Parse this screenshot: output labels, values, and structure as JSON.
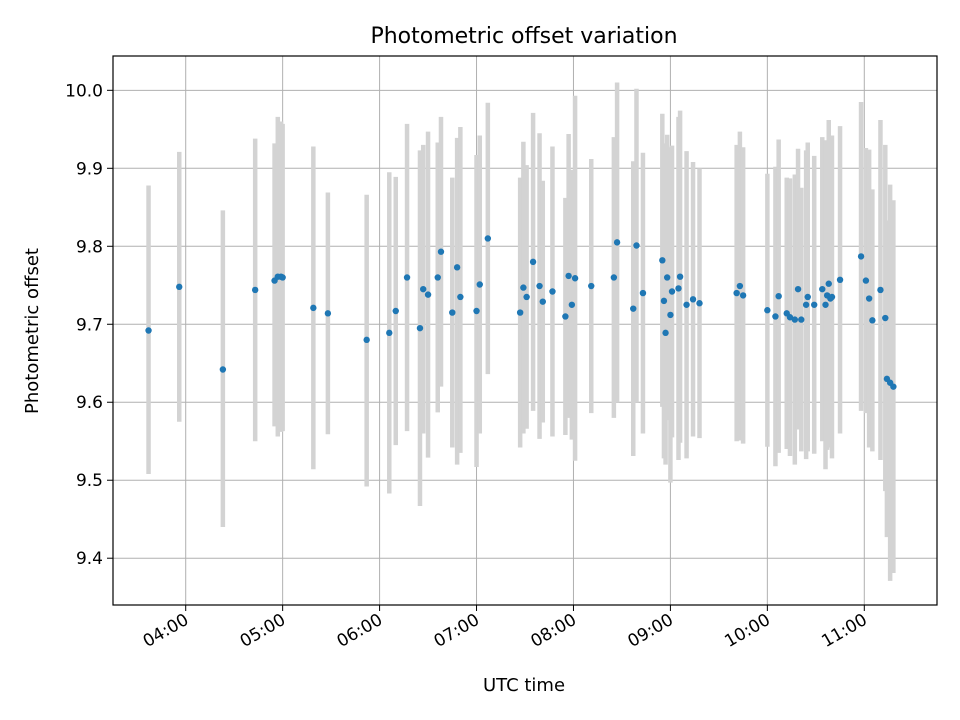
{
  "chart_data": {
    "type": "scatter",
    "title": "Photometric offset variation",
    "xlabel": "UTC time",
    "ylabel": "Photometric offset",
    "xlim": [
      "03:15",
      "11:45"
    ],
    "ylim": [
      9.34,
      10.044
    ],
    "x_ticks": [
      "04:00",
      "05:00",
      "06:00",
      "07:00",
      "08:00",
      "09:00",
      "10:00",
      "11:00"
    ],
    "y_ticks": [
      "9.4",
      "9.5",
      "9.6",
      "9.7",
      "9.8",
      "9.9",
      "10.0"
    ],
    "grid": true,
    "colors": {
      "point": "#1f77b4",
      "errorbar": "#d3d3d3",
      "grid": "#b0b0b0"
    },
    "series": [
      {
        "x": [
          "03:37",
          "03:56",
          "04:23",
          "04:43",
          "04:55",
          "04:57",
          "04:59",
          "05:00",
          "05:19",
          "05:28",
          "05:52",
          "06:06",
          "06:10",
          "06:17",
          "06:25",
          "06:27",
          "06:30",
          "06:36",
          "06:38",
          "06:45",
          "06:48",
          "06:50",
          "07:00",
          "07:02",
          "07:07",
          "07:27",
          "07:29",
          "07:31",
          "07:35",
          "07:39",
          "07:41",
          "07:47",
          "07:55",
          "07:57",
          "07:59",
          "08:01",
          "08:11",
          "08:25",
          "08:27",
          "08:37",
          "08:39",
          "08:43",
          "08:55",
          "08:56",
          "08:57",
          "08:58",
          "09:00",
          "09:01",
          "09:05",
          "09:06",
          "09:10",
          "09:14",
          "09:18",
          "09:41",
          "09:43",
          "09:45",
          "10:00",
          "10:05",
          "10:07",
          "10:12",
          "10:14",
          "10:17",
          "10:19",
          "10:21",
          "10:24",
          "10:25",
          "10:29",
          "10:34",
          "10:36",
          "10:37",
          "10:38",
          "10:39",
          "10:40",
          "10:45",
          "10:58",
          "11:01",
          "11:03",
          "11:05",
          "11:10",
          "11:13",
          "11:14",
          "11:16",
          "11:18"
        ],
        "y": [
          9.692,
          9.748,
          9.642,
          9.744,
          9.756,
          9.761,
          9.761,
          9.76,
          9.721,
          9.714,
          9.68,
          9.689,
          9.717,
          9.76,
          9.695,
          9.745,
          9.738,
          9.76,
          9.793,
          9.715,
          9.773,
          9.735,
          9.717,
          9.751,
          9.81,
          9.715,
          9.747,
          9.735,
          9.78,
          9.749,
          9.729,
          9.742,
          9.71,
          9.762,
          9.725,
          9.759,
          9.749,
          9.76,
          9.805,
          9.72,
          9.801,
          9.74,
          9.782,
          9.73,
          9.689,
          9.76,
          9.712,
          9.742,
          9.746,
          9.761,
          9.725,
          9.732,
          9.727,
          9.74,
          9.749,
          9.737,
          9.718,
          9.71,
          9.736,
          9.714,
          9.709,
          9.706,
          9.745,
          9.706,
          9.725,
          9.735,
          9.725,
          9.745,
          9.725,
          9.737,
          9.752,
          9.733,
          9.735,
          9.757,
          9.787,
          9.756,
          9.733,
          9.705,
          9.744,
          9.708,
          9.63,
          9.625,
          9.62
        ],
        "yerr_low": [
          9.508,
          9.575,
          9.44,
          9.55,
          9.569,
          9.556,
          9.562,
          9.563,
          9.514,
          9.559,
          9.492,
          9.483,
          9.545,
          9.563,
          9.467,
          9.56,
          9.529,
          9.587,
          9.62,
          9.542,
          9.52,
          9.535,
          9.517,
          9.56,
          9.636,
          9.542,
          9.56,
          9.566,
          9.589,
          9.553,
          9.574,
          9.556,
          9.558,
          9.58,
          9.552,
          9.525,
          9.586,
          9.58,
          9.6,
          9.531,
          9.6,
          9.56,
          9.594,
          9.528,
          9.52,
          9.577,
          9.497,
          9.555,
          9.526,
          9.548,
          9.528,
          9.556,
          9.554,
          9.55,
          9.551,
          9.547,
          9.543,
          9.518,
          9.535,
          9.54,
          9.531,
          9.52,
          9.565,
          9.537,
          9.527,
          9.537,
          9.534,
          9.55,
          9.514,
          9.539,
          9.542,
          9.555,
          9.528,
          9.56,
          9.589,
          9.586,
          9.542,
          9.537,
          9.526,
          9.486,
          9.427,
          9.371,
          9.381
        ],
        "yerr_high": [
          9.878,
          9.921,
          9.846,
          9.938,
          9.932,
          9.966,
          9.96,
          9.957,
          9.928,
          9.869,
          9.866,
          9.895,
          9.889,
          9.957,
          9.923,
          9.93,
          9.947,
          9.933,
          9.966,
          9.888,
          9.939,
          9.953,
          9.917,
          9.942,
          9.984,
          9.888,
          9.934,
          9.904,
          9.971,
          9.945,
          9.884,
          9.928,
          9.862,
          9.944,
          9.898,
          9.993,
          9.912,
          9.94,
          10.01,
          9.909,
          10.002,
          9.92,
          9.97,
          9.932,
          9.858,
          9.943,
          9.927,
          9.929,
          9.966,
          9.974,
          9.922,
          9.908,
          9.9,
          9.93,
          9.947,
          9.927,
          9.893,
          9.902,
          9.937,
          9.888,
          9.887,
          9.892,
          9.925,
          9.875,
          9.923,
          9.933,
          9.916,
          9.94,
          9.936,
          9.935,
          9.962,
          9.911,
          9.942,
          9.954,
          9.985,
          9.926,
          9.924,
          9.873,
          9.962,
          9.93,
          9.833,
          9.879,
          9.859
        ]
      }
    ]
  }
}
